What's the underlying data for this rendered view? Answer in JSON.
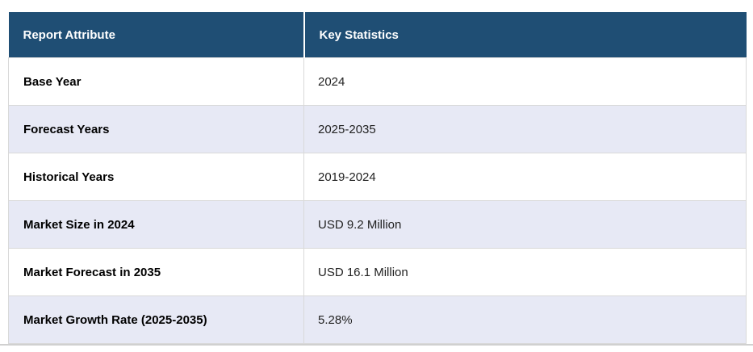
{
  "table": {
    "headers": {
      "attribute": "Report Attribute",
      "statistics": "Key Statistics"
    },
    "rows": [
      {
        "attribute": "Base Year",
        "value": "2024"
      },
      {
        "attribute": "Forecast Years",
        "value": "2025-2035"
      },
      {
        "attribute": "Historical Years",
        "value": "2019-2024"
      },
      {
        "attribute": "Market Size in 2024",
        "value": "USD 9.2 Million"
      },
      {
        "attribute": "Market Forecast in 2035",
        "value": "USD 16.1 Million"
      },
      {
        "attribute": "Market Growth Rate (2025-2035)",
        "value": "5.28%"
      }
    ],
    "colors": {
      "header_bg": "#1F4E74",
      "header_text": "#FFFFFF",
      "row_bg": "#FFFFFF",
      "row_alt_bg": "#E7E9F5",
      "cell_border": "#D9D9D9",
      "bottom_rule": "#D0D0D0",
      "attribute_text": "#000000",
      "value_text": "#222222"
    }
  }
}
